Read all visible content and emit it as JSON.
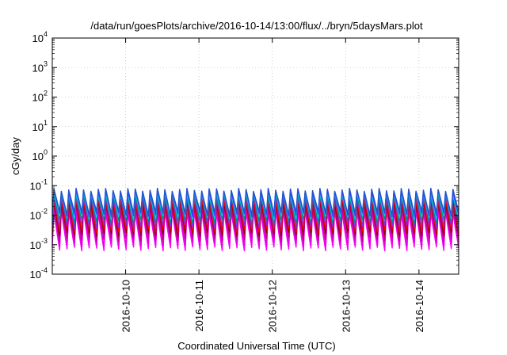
{
  "chart_data": {
    "type": "line",
    "title": "/data/run/goesPlots/archive/2016-10-14/13:00/flux/../bryn/5daysMars.plot",
    "xlabel": "Coordinated Universal Time (UTC)",
    "ylabel": "cGy/day",
    "yscale": "log",
    "ylim": [
      0.0001,
      10000
    ],
    "y_ticks": [
      {
        "base": "10",
        "exp": "4",
        "value": 10000
      },
      {
        "base": "10",
        "exp": "3",
        "value": 1000
      },
      {
        "base": "10",
        "exp": "2",
        "value": 100
      },
      {
        "base": "10",
        "exp": "1",
        "value": 10
      },
      {
        "base": "10",
        "exp": "0",
        "value": 1
      },
      {
        "base": "10",
        "exp": "-1",
        "value": 0.1
      },
      {
        "base": "10",
        "exp": "-2",
        "value": 0.01
      },
      {
        "base": "10",
        "exp": "-3",
        "value": 0.001
      },
      {
        "base": "10",
        "exp": "-4",
        "value": 0.0001
      }
    ],
    "xlim": [
      "2016-10-09T00:00",
      "2016-10-14T13:00"
    ],
    "x_ticks": [
      "2016-10-10",
      "2016-10-11",
      "2016-10-12",
      "2016-10-13",
      "2016-10-14"
    ],
    "grid": true,
    "legend": "none",
    "pattern": {
      "teeth_per_day": 10,
      "peak_value": 0.07,
      "trough_value_top_series": 0.01,
      "trough_value_bottom_series": 0.0007
    },
    "series": [
      {
        "color": "#ff00ff",
        "peak": 0.012,
        "trough": 0.0007
      },
      {
        "color": "#e000e0",
        "peak": 0.015,
        "trough": 0.001
      },
      {
        "color": "#c0008a",
        "peak": 0.02,
        "trough": 0.0015
      },
      {
        "color": "#8b0000",
        "peak": 0.028,
        "trough": 0.0022
      },
      {
        "color": "#ff0000",
        "peak": 0.035,
        "trough": 0.003
      },
      {
        "color": "#8a2be2",
        "peak": 0.045,
        "trough": 0.004
      },
      {
        "color": "#008b8b",
        "peak": 0.05,
        "trough": 0.006
      },
      {
        "color": "#00ced1",
        "peak": 0.055,
        "trough": 0.008
      },
      {
        "color": "#4040ff",
        "peak": 0.065,
        "trough": 0.01
      },
      {
        "color": "#2255cc",
        "peak": 0.075,
        "trough": 0.012
      }
    ]
  }
}
